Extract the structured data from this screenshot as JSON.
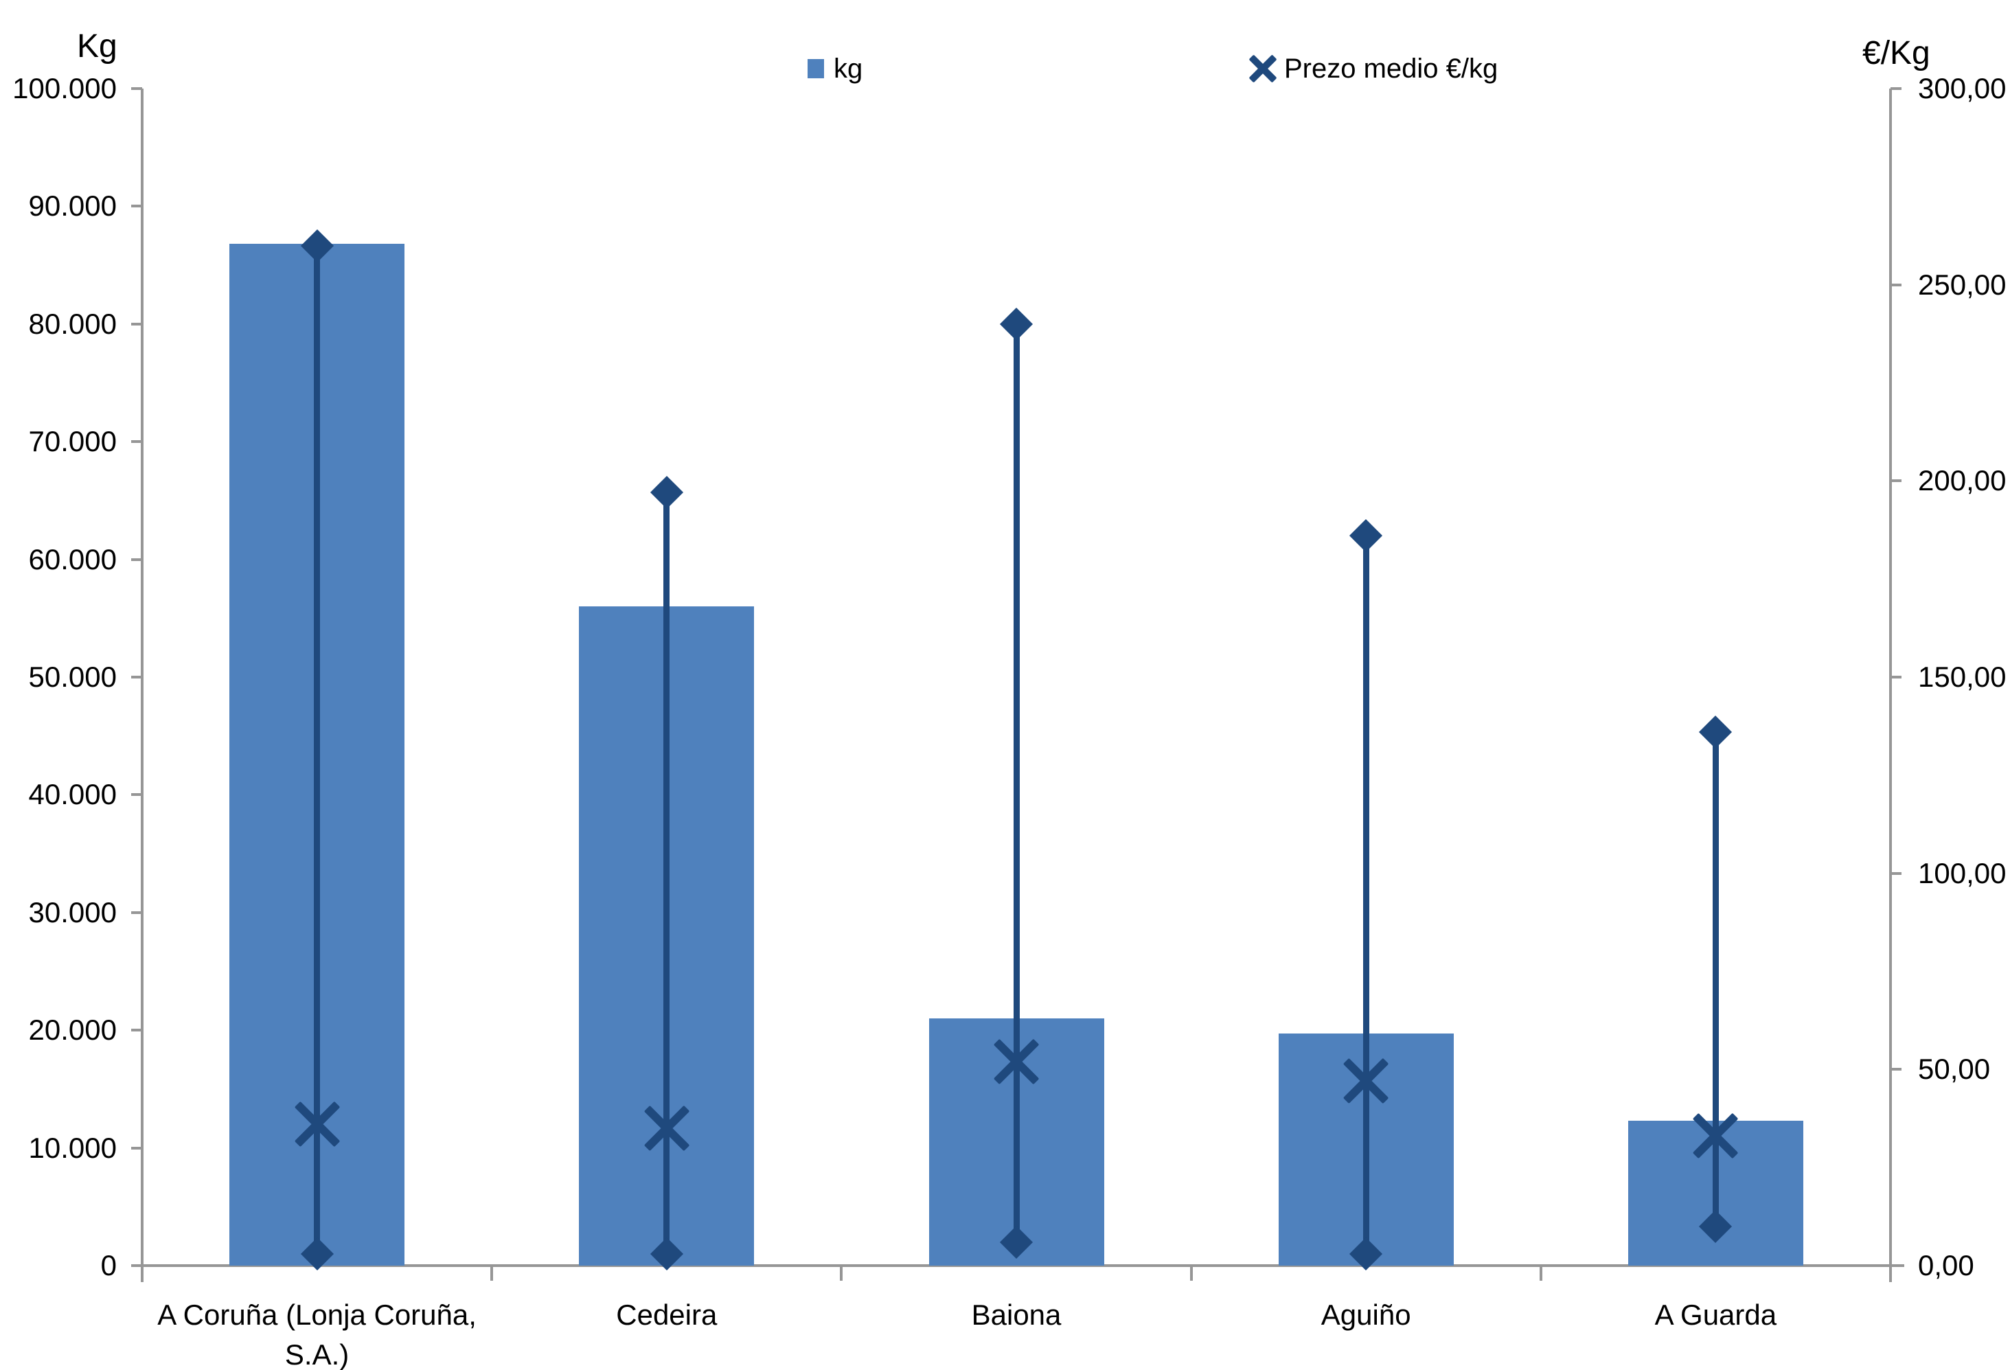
{
  "legend": {
    "items": [
      {
        "label": "kg",
        "marker": "square"
      },
      {
        "label": "Prezo medio €/kg",
        "marker": "x"
      }
    ]
  },
  "colors": {
    "bar": "#4F81BD",
    "marker": "#1F497D",
    "axis": "#969696",
    "text": "#000000",
    "background": "#FFFFFF"
  },
  "chart_data": {
    "type": "bar",
    "categories": [
      "A Coruña (Lonja Coruña,\nS.A.)",
      "Cedeira",
      "Baiona",
      "Aguiño",
      "A Guarda"
    ],
    "series": [
      {
        "name": "kg",
        "type": "bar",
        "axis": "left",
        "color": "#4F81BD",
        "values": [
          86800,
          56000,
          21000,
          19700,
          12300
        ]
      },
      {
        "name": "Prezo medio €/kg",
        "type": "hilo-avg",
        "axis": "right",
        "color": "#1F497D",
        "avg": [
          36,
          35,
          52,
          47,
          33
        ],
        "high": [
          260,
          197,
          240,
          186,
          136
        ],
        "low": [
          3,
          3,
          6,
          3,
          10
        ]
      }
    ],
    "left_axis": {
      "title": "Kg",
      "min": 0,
      "max": 100000,
      "step": 10000,
      "tick_labels": [
        "100.000",
        "90.000",
        "80.000",
        "70.000",
        "60.000",
        "50.000",
        "40.000",
        "30.000",
        "20.000",
        "10.000",
        "0"
      ]
    },
    "right_axis": {
      "title": "€/Kg",
      "min": 0,
      "max": 300,
      "step": 50,
      "tick_labels": [
        "300,00",
        "250,00",
        "200,00",
        "150,00",
        "100,00",
        "50,00",
        "0,00"
      ]
    },
    "grid": false,
    "legend_position": "top-center"
  }
}
